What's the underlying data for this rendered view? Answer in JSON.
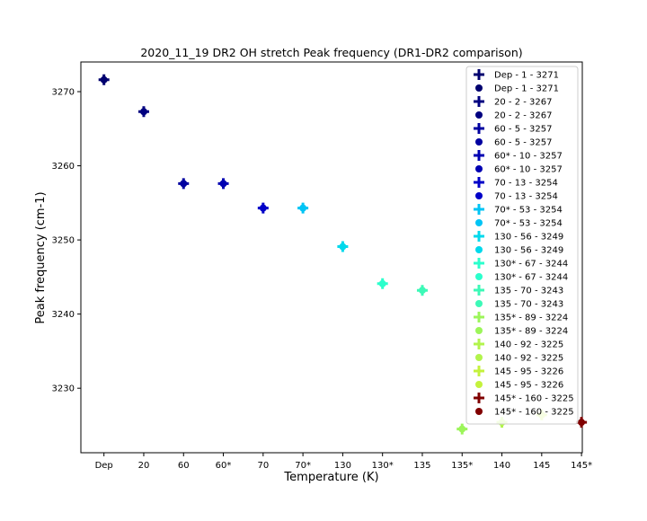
{
  "chart_data": {
    "type": "scatter",
    "title": "2020_11_19 DR2 OH stretch Peak frequency (DR1-DR2 comparison)",
    "xlabel": "Temperature (K)",
    "ylabel": "Peak frequency (cm-1)",
    "categories": [
      "Dep",
      "20",
      "60",
      "60*",
      "70",
      "70*",
      "130",
      "130*",
      "135",
      "135*",
      "140",
      "145",
      "145*"
    ],
    "y_ticks": [
      "3230",
      "3240",
      "3250",
      "3260",
      "3270"
    ],
    "ylim": [
      3221.3,
      3274.0
    ],
    "grid": false,
    "legend_position": "top-right",
    "series": [
      {
        "name": "Dep - 1 - 3271",
        "marker": "plus",
        "color": "#00006f",
        "points": [
          {
            "x": "Dep",
            "y": 3271.6
          }
        ]
      },
      {
        "name": "Dep - 1 - 3271",
        "marker": "circle",
        "color": "#00006f",
        "points": [
          {
            "x": "Dep",
            "y": 3271.6
          }
        ]
      },
      {
        "name": "20 - 2 - 3267",
        "marker": "plus",
        "color": "#000080",
        "points": [
          {
            "x": "20",
            "y": 3267.3
          }
        ]
      },
      {
        "name": "20 - 2 - 3267",
        "marker": "circle",
        "color": "#000080",
        "points": [
          {
            "x": "20",
            "y": 3267.3
          }
        ]
      },
      {
        "name": "60 - 5 - 3257",
        "marker": "plus",
        "color": "#0000a0",
        "points": [
          {
            "x": "60",
            "y": 3257.6
          }
        ]
      },
      {
        "name": "60 - 5 - 3257",
        "marker": "circle",
        "color": "#0000a0",
        "points": [
          {
            "x": "60",
            "y": 3257.6
          }
        ]
      },
      {
        "name": "60* - 10 - 3257",
        "marker": "plus",
        "color": "#0000b2",
        "points": [
          {
            "x": "60*",
            "y": 3257.6
          }
        ]
      },
      {
        "name": "60* - 10 - 3257",
        "marker": "circle",
        "color": "#0000b2",
        "points": [
          {
            "x": "60*",
            "y": 3257.6
          }
        ]
      },
      {
        "name": "70 - 13 - 3254",
        "marker": "plus",
        "color": "#0000c8",
        "points": [
          {
            "x": "70",
            "y": 3254.3
          }
        ]
      },
      {
        "name": "70 - 13 - 3254",
        "marker": "circle",
        "color": "#0000c8",
        "points": [
          {
            "x": "70",
            "y": 3254.3
          }
        ]
      },
      {
        "name": "70* - 53 - 3254",
        "marker": "plus",
        "color": "#00c4f5",
        "points": [
          {
            "x": "70*",
            "y": 3254.3
          }
        ]
      },
      {
        "name": "70* - 53 - 3254",
        "marker": "circle",
        "color": "#00c4f5",
        "points": [
          {
            "x": "70*",
            "y": 3254.3
          }
        ]
      },
      {
        "name": "130 - 56 - 3249",
        "marker": "plus",
        "color": "#00d9ec",
        "points": [
          {
            "x": "130",
            "y": 3249.1
          }
        ]
      },
      {
        "name": "130 - 56 - 3249",
        "marker": "circle",
        "color": "#00d9ec",
        "points": [
          {
            "x": "130",
            "y": 3249.1
          }
        ]
      },
      {
        "name": "130* - 67 - 3244",
        "marker": "plus",
        "color": "#2bffcc",
        "points": [
          {
            "x": "130*",
            "y": 3244.1
          }
        ]
      },
      {
        "name": "130* - 67 - 3244",
        "marker": "circle",
        "color": "#2bffcc",
        "points": [
          {
            "x": "130*",
            "y": 3244.1
          }
        ]
      },
      {
        "name": "135 - 70 - 3243",
        "marker": "plus",
        "color": "#3cf9b7",
        "points": [
          {
            "x": "135",
            "y": 3243.2
          }
        ]
      },
      {
        "name": "135 - 70 - 3243",
        "marker": "circle",
        "color": "#3cf9b7",
        "points": [
          {
            "x": "135",
            "y": 3243.2
          }
        ]
      },
      {
        "name": "135* - 89 - 3224",
        "marker": "plus",
        "color": "#9cf55a",
        "points": [
          {
            "x": "135*",
            "y": 3224.5
          }
        ]
      },
      {
        "name": "135* - 89 - 3224",
        "marker": "circle",
        "color": "#9cf55a",
        "points": [
          {
            "x": "135*",
            "y": 3224.5
          }
        ]
      },
      {
        "name": "140 - 92 - 3225",
        "marker": "plus",
        "color": "#b2f44c",
        "points": [
          {
            "x": "140",
            "y": 3225.4
          }
        ]
      },
      {
        "name": "140 - 92 - 3225",
        "marker": "circle",
        "color": "#b2f44c",
        "points": [
          {
            "x": "140",
            "y": 3225.4
          }
        ]
      },
      {
        "name": "145 - 95 - 3226",
        "marker": "plus",
        "color": "#c4f23c",
        "points": [
          {
            "x": "145",
            "y": 3226.4
          }
        ]
      },
      {
        "name": "145 - 95 - 3226",
        "marker": "circle",
        "color": "#c4f23c",
        "points": [
          {
            "x": "145",
            "y": 3226.4
          }
        ]
      },
      {
        "name": "145* - 160 - 3225",
        "marker": "plus",
        "color": "#800000",
        "points": [
          {
            "x": "145*",
            "y": 3225.4
          }
        ]
      },
      {
        "name": "145* - 160 - 3225",
        "marker": "circle",
        "color": "#800000",
        "points": [
          {
            "x": "145*",
            "y": 3225.4
          }
        ]
      }
    ]
  }
}
